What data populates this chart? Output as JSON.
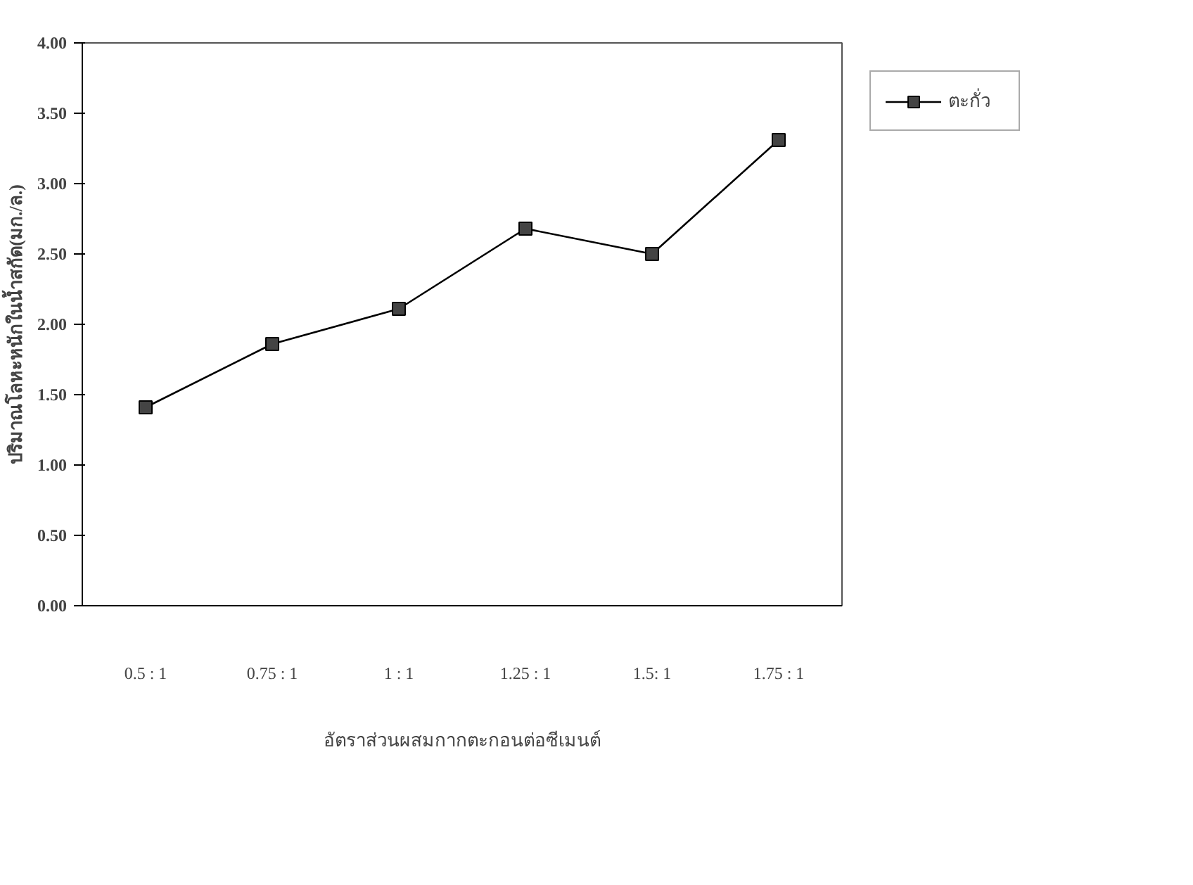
{
  "chart_data": {
    "type": "line",
    "xlabel": "อัตราส่วนผสมกากตะกอนต่อซีเมนต์",
    "ylabel": "ปริมาณโลหะหนักในน้ำสกัด(มก./ล.)",
    "categories": [
      "0.5 : 1",
      "0.75 : 1",
      "1 : 1",
      "1.25 : 1",
      "1.5: 1",
      "1.75 : 1"
    ],
    "series": [
      {
        "name": "ตะกั่ว",
        "color": "#000000",
        "values": [
          1.41,
          1.86,
          2.11,
          2.68,
          2.5,
          3.31
        ]
      }
    ],
    "ylim": [
      0,
      4
    ],
    "yticks": [
      {
        "value": 0,
        "label": "0.00"
      },
      {
        "value": 0.5,
        "label": "0.50"
      },
      {
        "value": 1,
        "label": "1.00"
      },
      {
        "value": 1.5,
        "label": "1.50"
      },
      {
        "value": 2,
        "label": "2.00"
      },
      {
        "value": 2.5,
        "label": "2.50"
      },
      {
        "value": 3,
        "label": "3.00"
      },
      {
        "value": 3.5,
        "label": "3.50"
      },
      {
        "value": 4,
        "label": "4.00"
      }
    ],
    "grid": false,
    "legend": "right",
    "marker": "square",
    "line_style": "solid"
  }
}
